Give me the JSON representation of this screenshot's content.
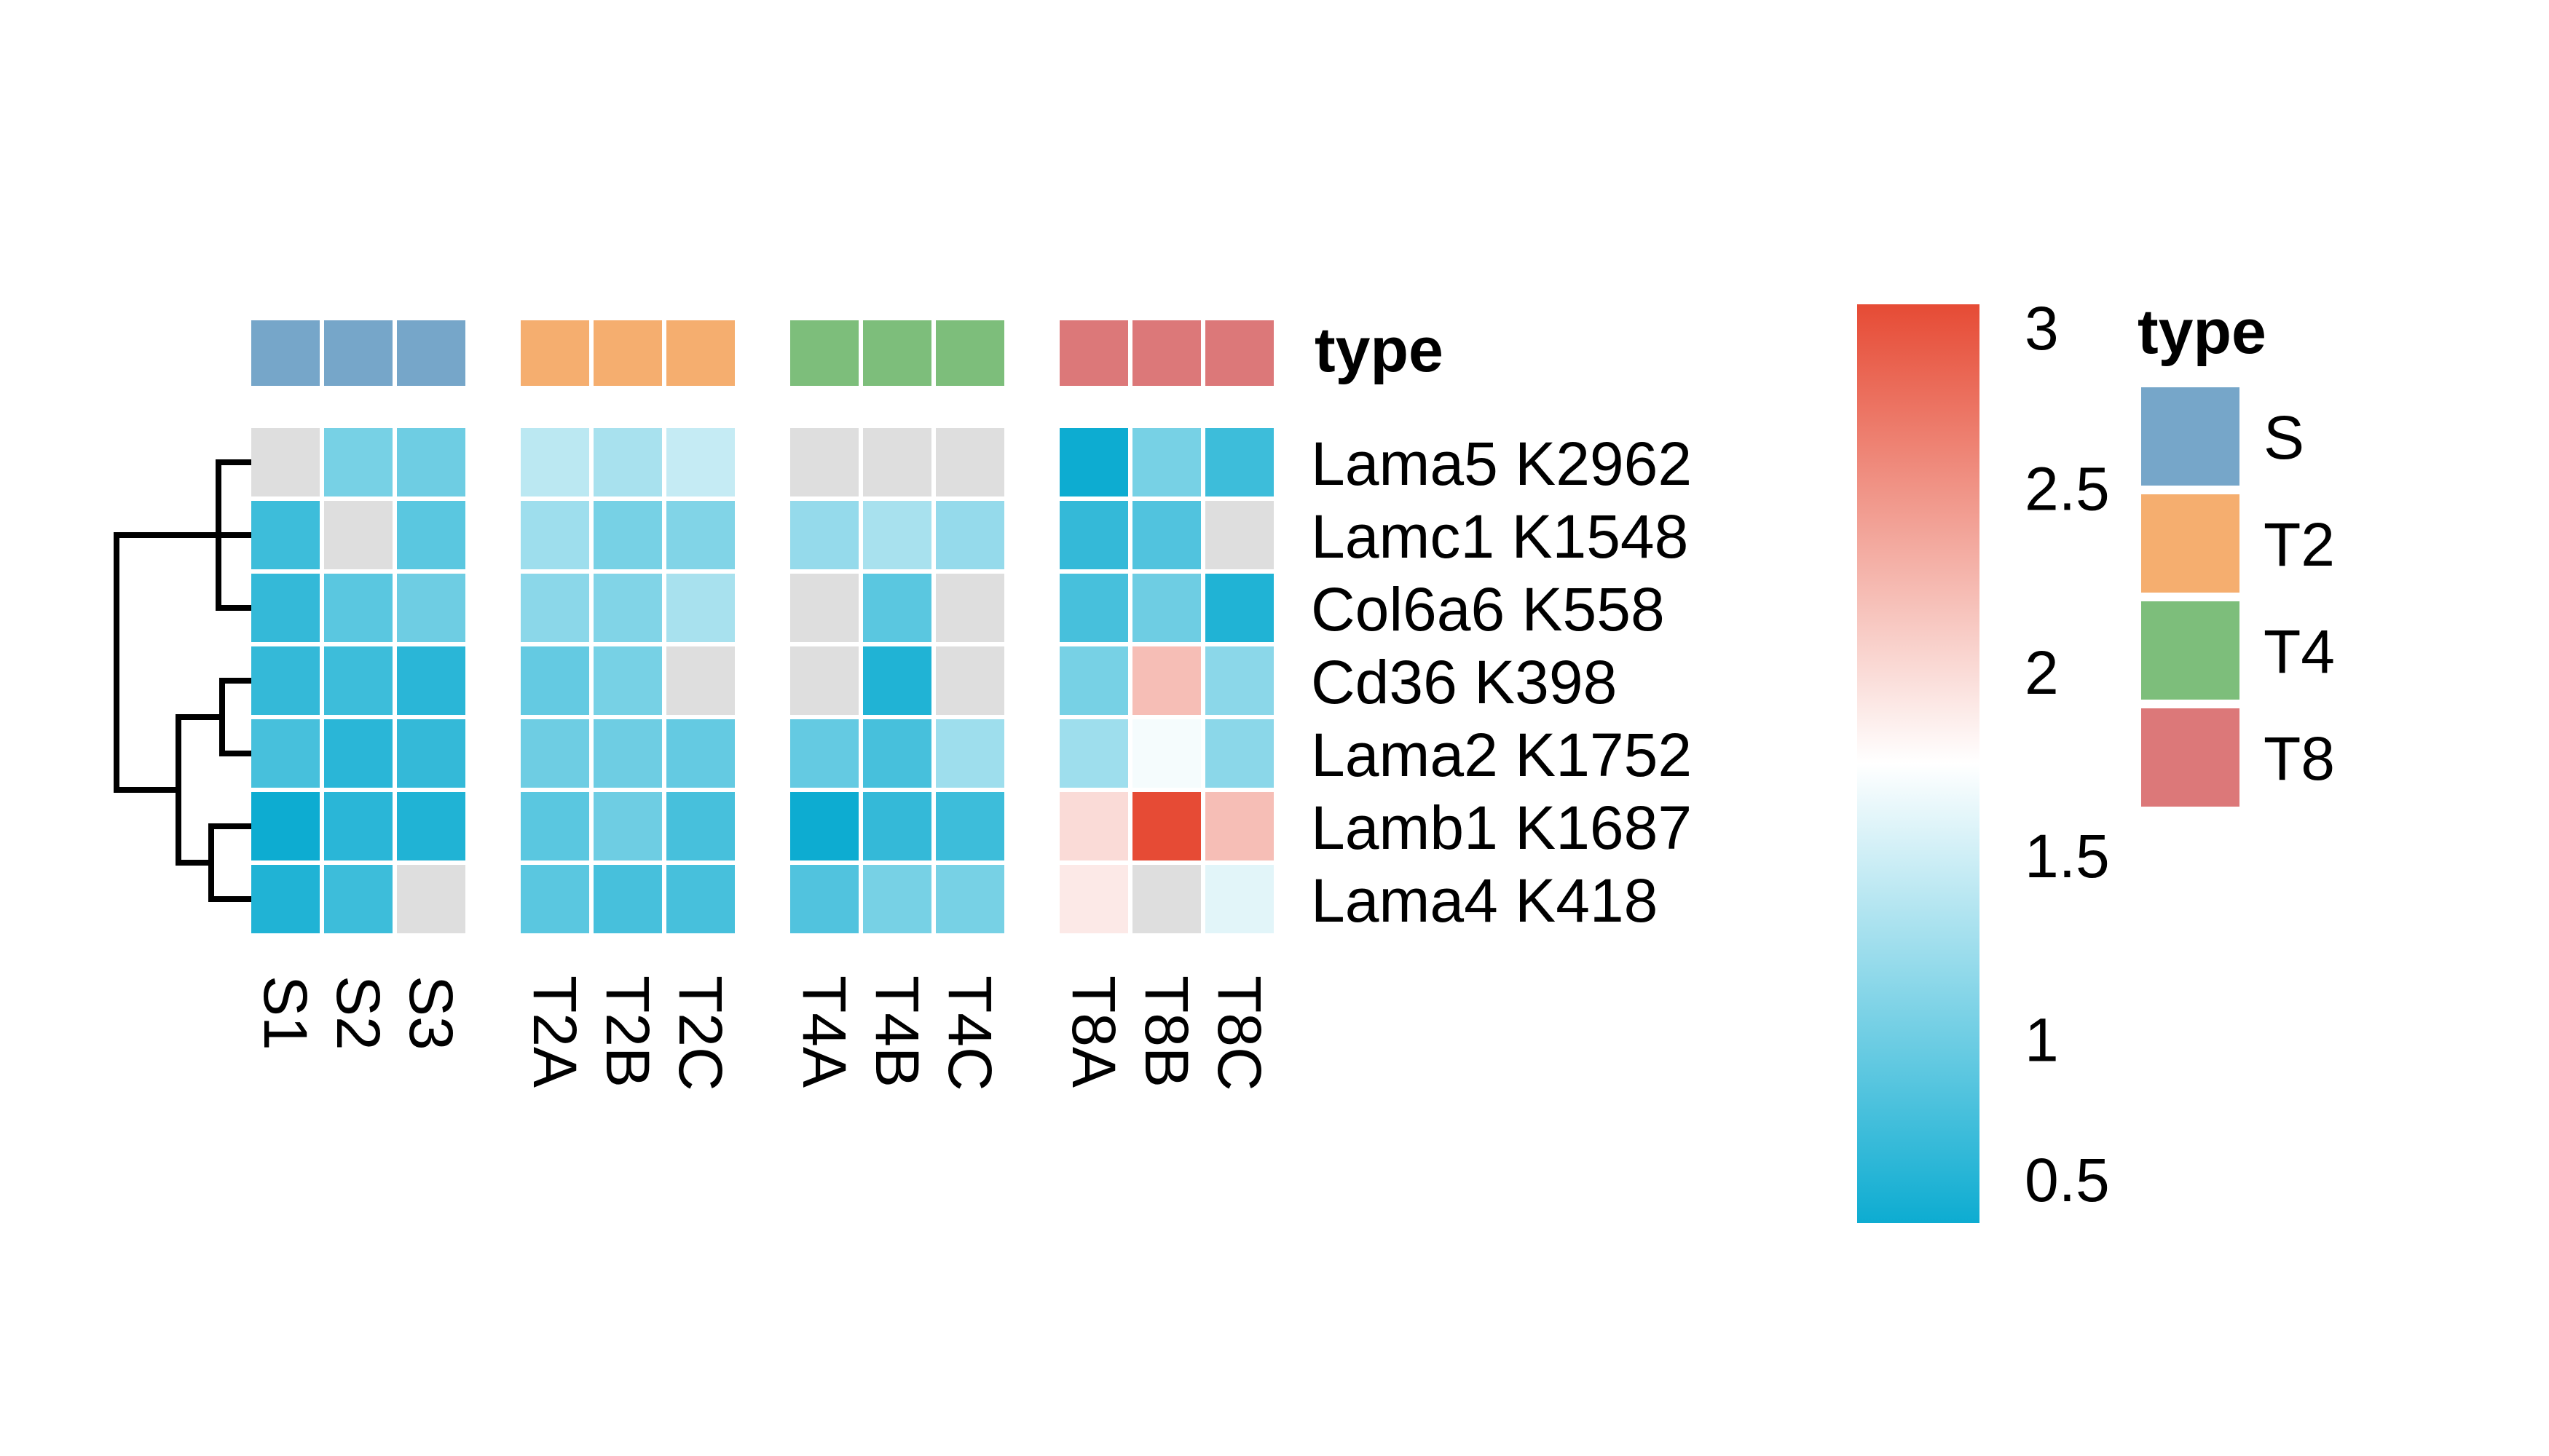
{
  "chart_data": {
    "type": "heatmap",
    "title": "",
    "annotation_label": "type",
    "rows": [
      "Lama5 K2962",
      "Lamc1 K1548",
      "Col6a6 K558",
      "Cd36 K398",
      "Lama2 K1752",
      "Lamb1 K1687",
      "Lama4 K418"
    ],
    "groups": [
      {
        "name": "S",
        "color": "#76A6C9",
        "columns": [
          "S1",
          "S2",
          "S3"
        ]
      },
      {
        "name": "T2",
        "color": "#F5AE6F",
        "columns": [
          "T2A",
          "T2B",
          "T2C"
        ]
      },
      {
        "name": "T4",
        "color": "#7DBE7B",
        "columns": [
          "T4A",
          "T4B",
          "T4C"
        ]
      },
      {
        "name": "T8",
        "color": "#DC7879",
        "columns": [
          "T8A",
          "T8B",
          "T8C"
        ]
      }
    ],
    "values": [
      [
        null,
        1.05,
        1.0,
        1.4,
        1.3,
        1.45,
        null,
        null,
        null,
        0.45,
        1.05,
        0.75
      ],
      [
        0.75,
        null,
        0.9,
        1.25,
        1.05,
        1.1,
        1.2,
        1.3,
        1.2,
        0.7,
        0.85,
        null
      ],
      [
        0.7,
        0.9,
        1.0,
        1.15,
        1.1,
        1.3,
        null,
        0.9,
        null,
        0.8,
        1.0,
        0.6
      ],
      [
        0.7,
        0.75,
        0.65,
        0.95,
        1.05,
        null,
        null,
        0.6,
        null,
        1.05,
        2.2,
        1.15
      ],
      [
        0.8,
        0.65,
        0.7,
        1.0,
        1.0,
        0.95,
        0.95,
        0.8,
        1.25,
        1.25,
        1.7,
        1.15
      ],
      [
        0.45,
        0.65,
        0.6,
        0.9,
        1.0,
        0.8,
        0.45,
        0.7,
        0.75,
        2.0,
        3.0,
        2.2
      ],
      [
        0.6,
        0.75,
        null,
        0.9,
        0.8,
        0.8,
        0.85,
        1.05,
        1.05,
        1.9,
        null,
        1.6
      ]
    ],
    "na_color": "#DEDEDE",
    "color_scale": {
      "min": 0.5,
      "mid": 1.75,
      "max": 3,
      "low_color": "#0DACD1",
      "mid_color": "#FFFFFF",
      "high_color": "#E64B35",
      "ticks": [
        {
          "value": 3,
          "label": "3"
        },
        {
          "value": 2.5,
          "label": "2.5"
        },
        {
          "value": 2,
          "label": "2"
        },
        {
          "value": 1.5,
          "label": "1.5"
        },
        {
          "value": 1,
          "label": "1"
        },
        {
          "value": 0.5,
          "label": "0.5"
        }
      ]
    },
    "legend": {
      "title": "type",
      "placement": "right"
    },
    "grid": false
  }
}
